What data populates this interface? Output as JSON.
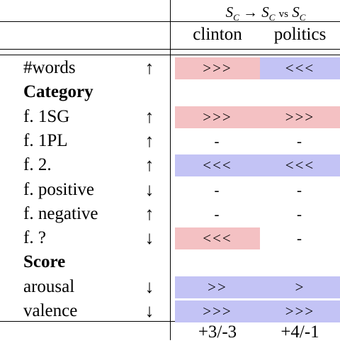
{
  "header": {
    "formula_lhs": "S",
    "formula_lhs_sub": "C",
    "formula_arrow": "→",
    "formula_mid": "S",
    "formula_mid_sub": "C",
    "formula_vs": "vs",
    "formula_rhs": "S",
    "formula_rhs_sub": "C",
    "col1": "clinton",
    "col2": "politics"
  },
  "rows": [
    {
      "label": "#words",
      "bold": false,
      "arrow": "↑",
      "c1": ">>>",
      "c1_tone": "up",
      "c2": "<<<",
      "c2_tone": "down"
    },
    {
      "label": "Category",
      "bold": true,
      "arrow": "",
      "c1": "",
      "c1_tone": "",
      "c2": "",
      "c2_tone": ""
    },
    {
      "label": "f. 1SG",
      "bold": false,
      "arrow": "↑",
      "c1": ">>>",
      "c1_tone": "up",
      "c2": ">>>",
      "c2_tone": "up"
    },
    {
      "label": "f. 1PL",
      "bold": false,
      "arrow": "↑",
      "c1": "-",
      "c1_tone": "",
      "c2": "-",
      "c2_tone": ""
    },
    {
      "label": "f. 2.",
      "bold": false,
      "arrow": "↑",
      "c1": "<<<",
      "c1_tone": "down",
      "c2": "<<<",
      "c2_tone": "down"
    },
    {
      "label": "f. positive",
      "bold": false,
      "arrow": "↓",
      "c1": "-",
      "c1_tone": "",
      "c2": "-",
      "c2_tone": ""
    },
    {
      "label": "f. negative",
      "bold": false,
      "arrow": "↑",
      "c1": "-",
      "c1_tone": "",
      "c2": "-",
      "c2_tone": ""
    },
    {
      "label": "f. ?",
      "bold": false,
      "arrow": "↓",
      "c1": "<<<",
      "c1_tone": "up",
      "c2": "-",
      "c2_tone": ""
    },
    {
      "label": "Score",
      "bold": true,
      "arrow": "",
      "c1": "",
      "c1_tone": "",
      "c2": "",
      "c2_tone": ""
    },
    {
      "label": "arousal",
      "bold": false,
      "arrow": "↓",
      "c1": ">>",
      "c1_tone": "down",
      "c2": ">",
      "c2_tone": "down"
    },
    {
      "label": "valence",
      "bold": false,
      "arrow": "↓",
      "c1": ">>>",
      "c1_tone": "down",
      "c2": ">>>",
      "c2_tone": "down"
    }
  ],
  "footer": {
    "c1": "+3/-3",
    "c2": "+4/-1"
  },
  "colors": {
    "up": "#f4c1c3",
    "down": "#c3c3f5"
  }
}
